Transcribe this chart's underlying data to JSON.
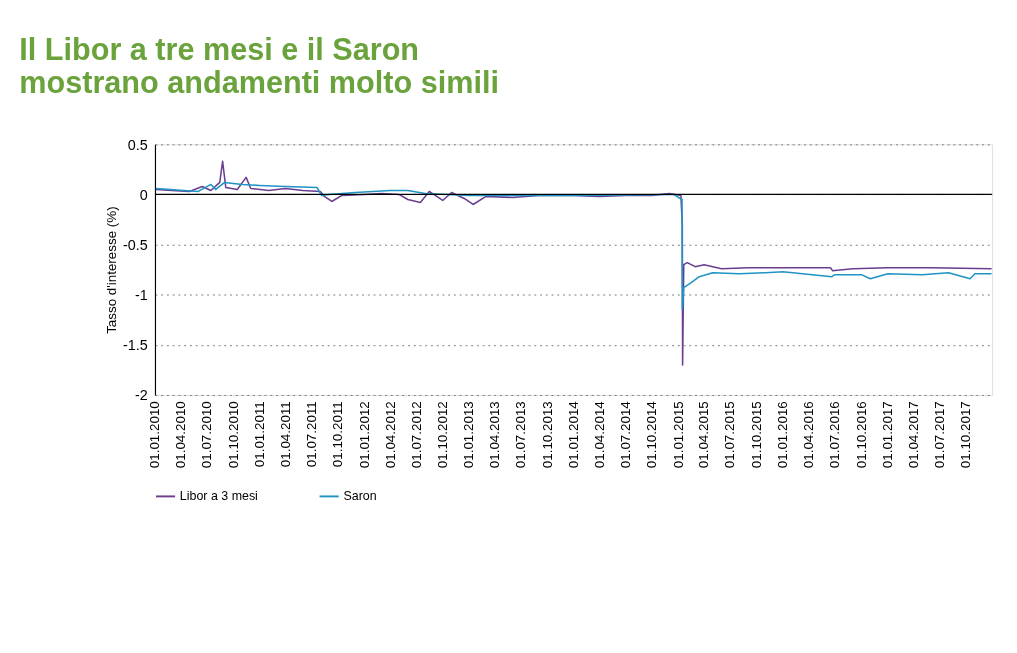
{
  "chart_data": {
    "type": "line",
    "title": "Il Libor a tre mesi e il Saron\nmostrano andamenti molto simili",
    "ylabel": "Tasso d'interesse (%)",
    "xlim": [
      "2010-01-01",
      "2017-12-31"
    ],
    "xticks": [
      {
        "value": "2010-01-01",
        "label": "01.01.2010"
      },
      {
        "value": "2010-04-01",
        "label": "01.04.2010"
      },
      {
        "value": "2010-07-01",
        "label": "01.07.2010"
      },
      {
        "value": "2010-10-01",
        "label": "01.10.2010"
      },
      {
        "value": "2011-01-01",
        "label": "01.01.2011"
      },
      {
        "value": "2011-04-01",
        "label": "01.04.2011"
      },
      {
        "value": "2011-07-01",
        "label": "01.07.2011"
      },
      {
        "value": "2011-10-01",
        "label": "01.10.2011"
      },
      {
        "value": "2012-01-01",
        "label": "01.01.2012"
      },
      {
        "value": "2012-04-01",
        "label": "01.04.2012"
      },
      {
        "value": "2012-07-01",
        "label": "01.07.2012"
      },
      {
        "value": "2012-10-01",
        "label": "01.10.2012"
      },
      {
        "value": "2013-01-01",
        "label": "01.01.2013"
      },
      {
        "value": "2013-04-01",
        "label": "01.04.2013"
      },
      {
        "value": "2013-07-01",
        "label": "01.07.2013"
      },
      {
        "value": "2013-10-01",
        "label": "01.10.2013"
      },
      {
        "value": "2014-01-01",
        "label": "01.01.2014"
      },
      {
        "value": "2014-04-01",
        "label": "01.04.2014"
      },
      {
        "value": "2014-07-01",
        "label": "01.07.2014"
      },
      {
        "value": "2014-10-01",
        "label": "01.10.2014"
      },
      {
        "value": "2015-01-01",
        "label": "01.01.2015"
      },
      {
        "value": "2015-04-01",
        "label": "01.04.2015"
      },
      {
        "value": "2015-07-01",
        "label": "01.07.2015"
      },
      {
        "value": "2015-10-01",
        "label": "01.10.2015"
      },
      {
        "value": "2016-01-01",
        "label": "01.01.2016"
      },
      {
        "value": "2016-04-01",
        "label": "01.04.2016"
      },
      {
        "value": "2016-07-01",
        "label": "01.07.2016"
      },
      {
        "value": "2016-10-01",
        "label": "01.10.2016"
      },
      {
        "value": "2017-01-01",
        "label": "01.01.2017"
      },
      {
        "value": "2017-04-01",
        "label": "01.04.2017"
      },
      {
        "value": "2017-07-01",
        "label": "01.07.2017"
      },
      {
        "value": "2017-10-01",
        "label": "01.10.2017"
      }
    ],
    "ylim": [
      -2,
      0.5
    ],
    "yticks": [
      0.5,
      0,
      -0.5,
      -1,
      -1.5,
      -2
    ],
    "grid": "y",
    "legend": "bottom",
    "line_style": "solid",
    "marker": "none",
    "ref_lines": [
      {
        "axis": "y",
        "value": 0,
        "color": "#000000"
      }
    ],
    "series": [
      {
        "name": "Libor a 3 mesi",
        "color": "#6a3d8f",
        "x": [
          "2010-01-04",
          "2010-03-01",
          "2010-05-01",
          "2010-06-15",
          "2010-07-15",
          "2010-08-15",
          "2010-08-25",
          "2010-09-05",
          "2010-10-15",
          "2010-11-15",
          "2010-12-01",
          "2011-02-01",
          "2011-04-01",
          "2011-06-01",
          "2011-08-01",
          "2011-08-15",
          "2011-09-10",
          "2011-10-15",
          "2012-01-01",
          "2012-03-01",
          "2012-05-01",
          "2012-06-01",
          "2012-07-15",
          "2012-08-15",
          "2012-10-01",
          "2012-11-01",
          "2012-12-15",
          "2013-01-15",
          "2013-03-01",
          "2013-06-01",
          "2013-09-01",
          "2014-01-01",
          "2014-04-01",
          "2014-07-01",
          "2014-10-01",
          "2014-12-01",
          "2015-01-10",
          "2015-01-15",
          "2015-01-16",
          "2015-01-20",
          "2015-02-01",
          "2015-03-01",
          "2015-04-01",
          "2015-06-01",
          "2015-09-01",
          "2016-01-01",
          "2016-04-01",
          "2016-06-15",
          "2016-06-22",
          "2016-09-01",
          "2017-01-01",
          "2017-06-01",
          "2017-12-29"
        ],
        "values": [
          0.05,
          0.04,
          0.03,
          0.08,
          0.04,
          0.12,
          0.33,
          0.07,
          0.05,
          0.17,
          0.06,
          0.04,
          0.06,
          0.04,
          0.03,
          -0.02,
          -0.07,
          -0.01,
          0.0,
          0.01,
          0.0,
          -0.05,
          -0.08,
          0.03,
          -0.06,
          0.02,
          -0.04,
          -0.1,
          -0.02,
          -0.03,
          -0.01,
          -0.01,
          -0.02,
          -0.01,
          -0.01,
          0.01,
          -0.01,
          -0.3,
          -1.7,
          -0.7,
          -0.68,
          -0.72,
          -0.7,
          -0.74,
          -0.73,
          -0.73,
          -0.73,
          -0.73,
          -0.76,
          -0.74,
          -0.73,
          -0.73,
          -0.74
        ]
      },
      {
        "name": "Saron",
        "color": "#1f94c4",
        "x": [
          "2010-01-04",
          "2010-06-01",
          "2010-07-15",
          "2010-08-01",
          "2010-09-01",
          "2010-11-01",
          "2011-01-01",
          "2011-04-01",
          "2011-07-20",
          "2011-08-05",
          "2011-09-01",
          "2011-12-01",
          "2012-04-01",
          "2012-06-01",
          "2012-08-01",
          "2013-01-01",
          "2014-01-01",
          "2014-12-15",
          "2015-01-14",
          "2015-01-15",
          "2015-01-20",
          "2015-02-15",
          "2015-03-15",
          "2015-05-01",
          "2015-08-01",
          "2015-11-01",
          "2016-01-01",
          "2016-06-20",
          "2016-07-01",
          "2016-10-01",
          "2016-11-01",
          "2017-01-01",
          "2017-05-01",
          "2017-08-01",
          "2017-10-15",
          "2017-11-01",
          "2017-12-29"
        ],
        "values": [
          0.06,
          0.03,
          0.1,
          0.05,
          0.12,
          0.1,
          0.09,
          0.08,
          0.07,
          -0.01,
          0.0,
          0.02,
          0.04,
          0.04,
          0.01,
          -0.01,
          -0.01,
          0.0,
          -0.05,
          -1.15,
          -0.93,
          -0.88,
          -0.82,
          -0.78,
          -0.79,
          -0.78,
          -0.77,
          -0.82,
          -0.8,
          -0.8,
          -0.84,
          -0.79,
          -0.8,
          -0.78,
          -0.84,
          -0.79,
          -0.79
        ]
      }
    ]
  }
}
